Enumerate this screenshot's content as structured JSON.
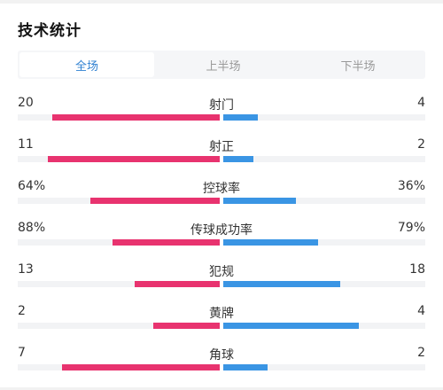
{
  "header": {
    "title": "技术统计"
  },
  "tabs": [
    {
      "label": "全场",
      "active": true
    },
    {
      "label": "上半场",
      "active": false
    },
    {
      "label": "下半场",
      "active": false
    }
  ],
  "colors": {
    "home": "#e8336f",
    "away": "#3a95e4",
    "active_tab": "#2f80d1"
  },
  "stats": [
    {
      "label": "射门",
      "home": "20",
      "away": "4",
      "home_share": 0.83,
      "away_share": 0.17
    },
    {
      "label": "射正",
      "home": "11",
      "away": "2",
      "home_share": 0.85,
      "away_share": 0.15
    },
    {
      "label": "控球率",
      "home": "64%",
      "away": "36%",
      "home_share": 0.64,
      "away_share": 0.36
    },
    {
      "label": "传球成功率",
      "home": "88%",
      "away": "79%",
      "home_share": 0.53,
      "away_share": 0.47
    },
    {
      "label": "犯规",
      "home": "13",
      "away": "18",
      "home_share": 0.42,
      "away_share": 0.58
    },
    {
      "label": "黄牌",
      "home": "2",
      "away": "4",
      "home_share": 0.33,
      "away_share": 0.67
    },
    {
      "label": "角球",
      "home": "7",
      "away": "2",
      "home_share": 0.78,
      "away_share": 0.22
    }
  ]
}
